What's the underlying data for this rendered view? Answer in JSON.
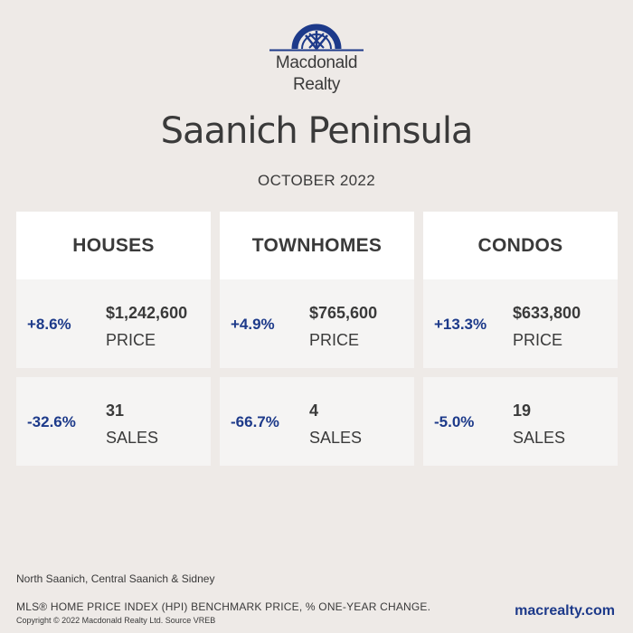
{
  "brand": {
    "logo_icon": "macdonald-realty-arch-logo",
    "name_line1": "Macdonald",
    "name_line2": "Realty",
    "color": "#1d3a8a"
  },
  "title": "Saanich Peninsula",
  "period": "OCTOBER 2022",
  "categories": [
    {
      "name": "HOUSES",
      "price_change": "+8.6%",
      "price": "$1,242,600",
      "price_label": "PRICE",
      "sales_change": "-32.6%",
      "sales": "31",
      "sales_label": "SALES"
    },
    {
      "name": "TOWNHOMES",
      "price_change": "+4.9%",
      "price": "$765,600",
      "price_label": "PRICE",
      "sales_change": "-66.7%",
      "sales": "4",
      "sales_label": "SALES"
    },
    {
      "name": "CONDOS",
      "price_change": "+13.3%",
      "price": "$633,800",
      "price_label": "PRICE",
      "sales_change": "-5.0%",
      "sales": "19",
      "sales_label": "SALES"
    }
  ],
  "footer": {
    "region": "North Saanich, Central Saanich & Sidney",
    "note": "MLS® HOME PRICE INDEX (HPI) BENCHMARK PRICE, % ONE-YEAR CHANGE.",
    "copyright": "Copyright © 2022 Macdonald Realty Ltd. Source VREB",
    "website": "macrealty.com"
  },
  "colors": {
    "background": "#eeeae7",
    "card_header": "#ffffff",
    "card_body": "#f5f4f3",
    "accent": "#1d3a8a",
    "text": "#3a3a3a"
  }
}
